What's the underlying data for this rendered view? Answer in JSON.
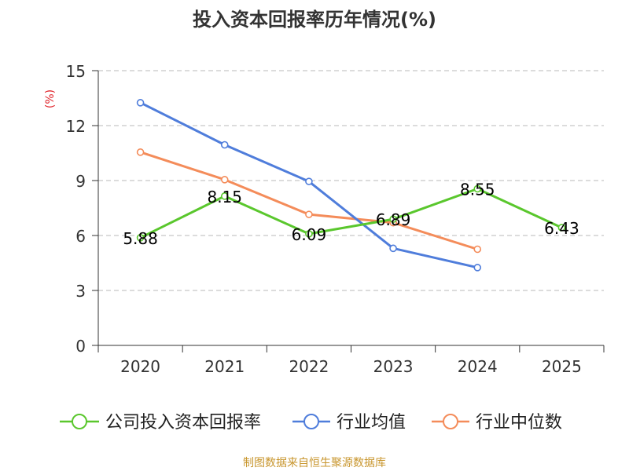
{
  "chart_data": {
    "type": "line",
    "title": "投入资本回报率历年情况(%)",
    "ylabel": "(%)",
    "xlabel": "",
    "categories": [
      "2020",
      "2021",
      "2022",
      "2023",
      "2024",
      "2025"
    ],
    "ylim": [
      0,
      15
    ],
    "yticks": [
      0,
      3,
      6,
      9,
      12,
      15
    ],
    "grid": true,
    "legend_position": "bottom",
    "series": [
      {
        "name": "公司投入资本回报率",
        "color": "#5ac72d",
        "values": [
          5.88,
          8.15,
          6.09,
          6.89,
          8.55,
          6.43
        ],
        "labels": [
          "5.88",
          "8.15",
          "6.09",
          "6.89",
          "8.55",
          "6.43"
        ],
        "show_labels": true,
        "label_keys": [
          "l0",
          "l1",
          "l2",
          "l3",
          "l4",
          "l5"
        ]
      },
      {
        "name": "行业均值",
        "color": "#4f7ddb",
        "values": [
          13.25,
          10.95,
          8.95,
          5.3,
          4.25,
          null
        ],
        "show_labels": false
      },
      {
        "name": "行业中位数",
        "color": "#f48c5a",
        "values": [
          10.55,
          9.05,
          7.15,
          6.7,
          5.25,
          null
        ],
        "show_labels": false
      }
    ],
    "source": "制图数据来自恒生聚源数据库",
    "title_color": "#333333",
    "ylabel_color": "#e0232a",
    "source_color": "#c8962e",
    "grid_color": "#c8c8c8",
    "axis_color": "#333333"
  }
}
